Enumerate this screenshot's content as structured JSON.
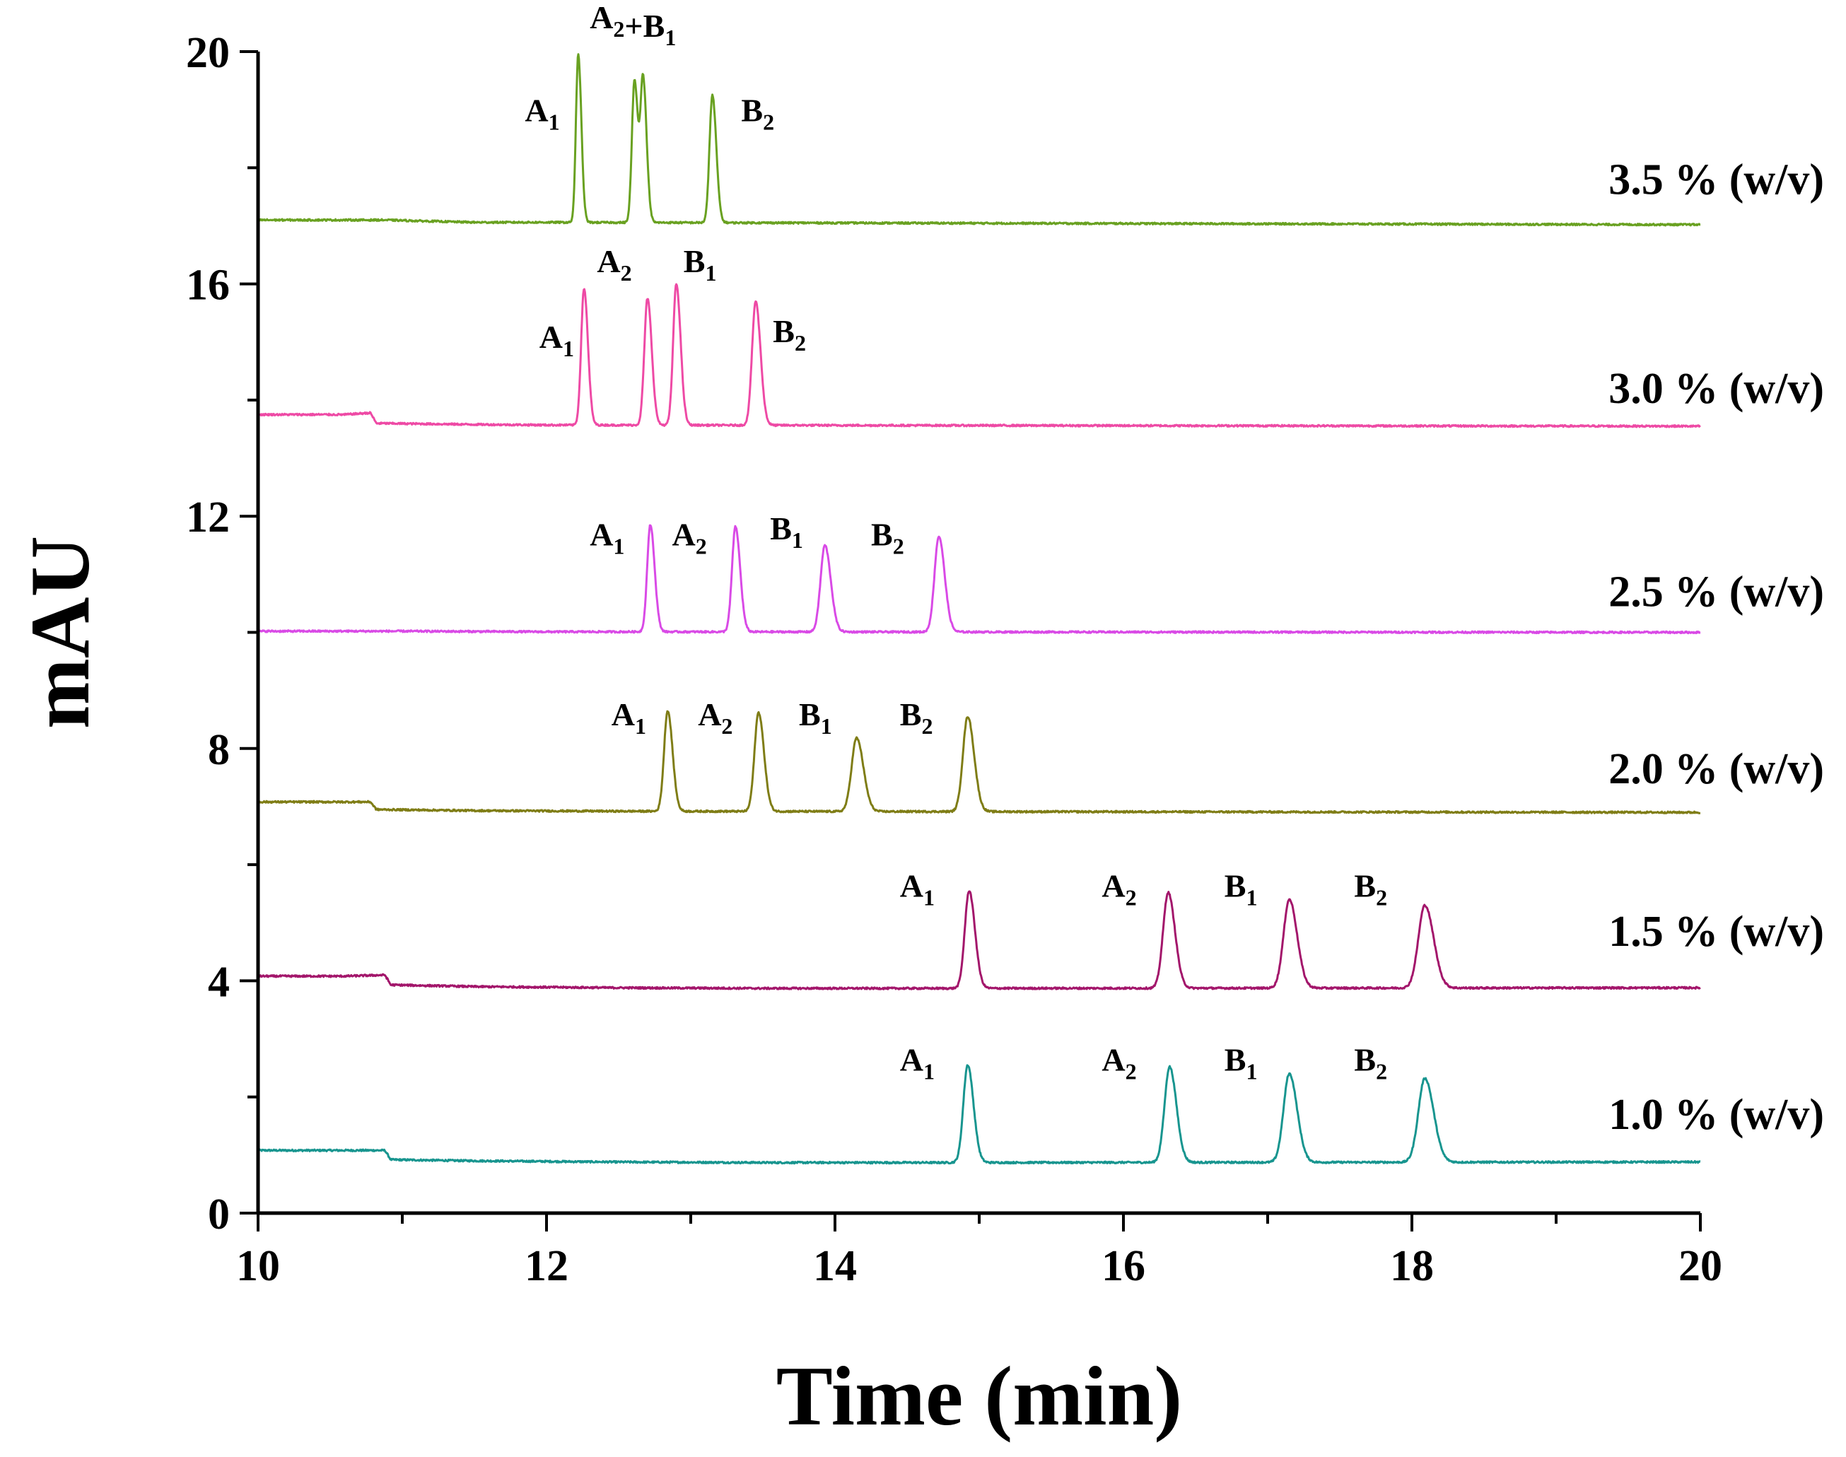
{
  "chart_data": {
    "type": "line",
    "title": "",
    "xlabel": "Time (min)",
    "ylabel": "mAU",
    "xlim": [
      10,
      20
    ],
    "ylim": [
      0,
      20
    ],
    "xticks": [
      10,
      12,
      14,
      16,
      18,
      20
    ],
    "yticks": [
      0,
      4,
      8,
      12,
      16,
      20
    ],
    "x_minor_step": 1,
    "y_minor_step": 2,
    "grid": false,
    "series": [
      {
        "name": "1.0 % (w/v)",
        "color": "#18958f",
        "points": [
          [
            10,
            1.08
          ],
          [
            10.3,
            1.08
          ],
          [
            10.6,
            1.08
          ],
          [
            10.88,
            1.08
          ],
          [
            10.92,
            0.92
          ],
          [
            11.5,
            0.9
          ],
          [
            12.5,
            0.88
          ],
          [
            13.5,
            0.87
          ],
          [
            14.5,
            0.87
          ],
          [
            14.8,
            0.87
          ]
        ],
        "baseline_end": 0.88,
        "peaks": [
          {
            "t": 14.92,
            "height": 2.55,
            "width": 0.03,
            "label": "A",
            "sub": "1"
          },
          {
            "t": 16.32,
            "height": 2.52,
            "width": 0.035,
            "label": "A",
            "sub": "2"
          },
          {
            "t": 17.15,
            "height": 2.4,
            "width": 0.04,
            "label": "B",
            "sub": "1"
          },
          {
            "t": 18.09,
            "height": 2.32,
            "width": 0.045,
            "label": "B",
            "sub": "2"
          }
        ]
      },
      {
        "name": "1.5 % (w/v)",
        "color": "#a3166b",
        "points": [
          [
            10,
            4.08
          ],
          [
            10.3,
            4.08
          ],
          [
            10.6,
            4.08
          ],
          [
            10.88,
            4.1
          ],
          [
            10.92,
            3.93
          ],
          [
            11.5,
            3.9
          ],
          [
            12.5,
            3.88
          ],
          [
            13.5,
            3.87
          ],
          [
            14.5,
            3.87
          ],
          [
            14.8,
            3.87
          ]
        ],
        "baseline_end": 3.88,
        "peaks": [
          {
            "t": 14.93,
            "height": 5.55,
            "width": 0.03,
            "label": "A",
            "sub": "1"
          },
          {
            "t": 16.31,
            "height": 5.52,
            "width": 0.035,
            "label": "A",
            "sub": "2"
          },
          {
            "t": 17.15,
            "height": 5.4,
            "width": 0.04,
            "label": "B",
            "sub": "1"
          },
          {
            "t": 18.09,
            "height": 5.3,
            "width": 0.045,
            "label": "B",
            "sub": "2"
          }
        ]
      },
      {
        "name": "2.0 % (w/v)",
        "color": "#7f7d16",
        "points": [
          [
            10,
            7.08
          ],
          [
            10.3,
            7.08
          ],
          [
            10.6,
            7.08
          ],
          [
            10.78,
            7.08
          ],
          [
            10.82,
            6.95
          ],
          [
            11.5,
            6.93
          ],
          [
            12.5,
            6.92
          ]
        ],
        "baseline_end": 6.9,
        "peaks": [
          {
            "t": 12.84,
            "height": 8.65,
            "width": 0.025,
            "label": "A",
            "sub": "1"
          },
          {
            "t": 13.47,
            "height": 8.62,
            "width": 0.028,
            "label": "A",
            "sub": "2"
          },
          {
            "t": 14.15,
            "height": 8.18,
            "width": 0.035,
            "label": "B",
            "sub": "1"
          },
          {
            "t": 14.92,
            "height": 8.55,
            "width": 0.033,
            "label": "B",
            "sub": "2"
          }
        ]
      },
      {
        "name": "2.5 % (w/v)",
        "color": "#d94ae6",
        "points": [
          [
            10,
            10.02
          ],
          [
            11,
            10.02
          ],
          [
            12,
            10.01
          ],
          [
            12.5,
            10.01
          ]
        ],
        "baseline_end": 10.0,
        "peaks": [
          {
            "t": 12.72,
            "height": 11.85,
            "width": 0.022,
            "label": "A",
            "sub": "1"
          },
          {
            "t": 13.31,
            "height": 11.82,
            "width": 0.024,
            "label": "A",
            "sub": "2"
          },
          {
            "t": 13.93,
            "height": 11.5,
            "width": 0.03,
            "label": "B",
            "sub": "1"
          },
          {
            "t": 14.72,
            "height": 11.65,
            "width": 0.03,
            "label": "B",
            "sub": "2"
          }
        ]
      },
      {
        "name": "3.0 % (w/v)",
        "color": "#ee4aa5",
        "points": [
          [
            10,
            13.75
          ],
          [
            10.3,
            13.75
          ],
          [
            10.6,
            13.75
          ],
          [
            10.78,
            13.78
          ],
          [
            10.82,
            13.6
          ],
          [
            11.5,
            13.58
          ],
          [
            12.0,
            13.57
          ]
        ],
        "baseline_end": 13.55,
        "peaks": [
          {
            "t": 12.26,
            "height": 15.92,
            "width": 0.02,
            "label": "A",
            "sub": "1"
          },
          {
            "t": 12.7,
            "height": 15.75,
            "width": 0.022,
            "label": "A",
            "sub": "2"
          },
          {
            "t": 12.9,
            "height": 16.0,
            "width": 0.022,
            "label": "B",
            "sub": "1"
          },
          {
            "t": 13.45,
            "height": 15.7,
            "width": 0.025,
            "label": "B",
            "sub": "2"
          }
        ]
      },
      {
        "name": "3.5 % (w/v)",
        "color": "#69a121",
        "points": [
          [
            10,
            17.1
          ],
          [
            10.5,
            17.1
          ],
          [
            10.88,
            17.1
          ],
          [
            11.5,
            17.06
          ],
          [
            12.0,
            17.06
          ]
        ],
        "baseline_end": 17.02,
        "peaks": [
          {
            "t": 12.22,
            "height": 19.95,
            "width": 0.016,
            "label": "A",
            "sub": "1"
          },
          {
            "t": 12.61,
            "height": 19.5,
            "width": 0.018,
            "label": "A",
            "sub": "2",
            "combined": true
          },
          {
            "t": 12.67,
            "height": 19.5,
            "width": 0.018,
            "label": "B",
            "sub": "1",
            "combined": true
          },
          {
            "t": 13.15,
            "height": 19.25,
            "width": 0.02,
            "label": "B",
            "sub": "2"
          }
        ]
      }
    ],
    "peak_annotations": [
      {
        "series": "3.5 % (w/v)",
        "parts": [
          [
            "A",
            "1"
          ]
        ],
        "x": 11.85,
        "y": 18.8
      },
      {
        "series": "3.5 % (w/v)",
        "parts": [
          [
            "A",
            "2"
          ],
          [
            "+B",
            "1"
          ]
        ],
        "x": 12.3,
        "y": 20.4
      },
      {
        "series": "3.5 % (w/v)",
        "parts": [
          [
            "B",
            "2"
          ]
        ],
        "x": 13.35,
        "y": 18.8
      },
      {
        "series": "3.0 % (w/v)",
        "parts": [
          [
            "A",
            "1"
          ]
        ],
        "x": 11.95,
        "y": 14.9
      },
      {
        "series": "3.0 % (w/v)",
        "parts": [
          [
            "A",
            "2"
          ]
        ],
        "x": 12.35,
        "y": 16.2
      },
      {
        "series": "3.0 % (w/v)",
        "parts": [
          [
            "B",
            "1"
          ]
        ],
        "x": 12.95,
        "y": 16.2
      },
      {
        "series": "3.0 % (w/v)",
        "parts": [
          [
            "B",
            "2"
          ]
        ],
        "x": 13.57,
        "y": 15.0
      },
      {
        "series": "2.5 % (w/v)",
        "parts": [
          [
            "A",
            "1"
          ]
        ],
        "x": 12.3,
        "y": 11.5
      },
      {
        "series": "2.5 % (w/v)",
        "parts": [
          [
            "A",
            "2"
          ]
        ],
        "x": 12.87,
        "y": 11.5
      },
      {
        "series": "2.5 % (w/v)",
        "parts": [
          [
            "B",
            "1"
          ]
        ],
        "x": 13.55,
        "y": 11.6
      },
      {
        "series": "2.5 % (w/v)",
        "parts": [
          [
            "B",
            "2"
          ]
        ],
        "x": 14.25,
        "y": 11.5
      },
      {
        "series": "2.0 % (w/v)",
        "parts": [
          [
            "A",
            "1"
          ]
        ],
        "x": 12.45,
        "y": 8.4
      },
      {
        "series": "2.0 % (w/v)",
        "parts": [
          [
            "A",
            "2"
          ]
        ],
        "x": 13.05,
        "y": 8.4
      },
      {
        "series": "2.0 % (w/v)",
        "parts": [
          [
            "B",
            "1"
          ]
        ],
        "x": 13.75,
        "y": 8.4
      },
      {
        "series": "2.0 % (w/v)",
        "parts": [
          [
            "B",
            "2"
          ]
        ],
        "x": 14.45,
        "y": 8.4
      },
      {
        "series": "1.5 % (w/v)",
        "parts": [
          [
            "A",
            "1"
          ]
        ],
        "x": 14.45,
        "y": 5.45
      },
      {
        "series": "1.5 % (w/v)",
        "parts": [
          [
            "A",
            "2"
          ]
        ],
        "x": 15.85,
        "y": 5.45
      },
      {
        "series": "1.5 % (w/v)",
        "parts": [
          [
            "B",
            "1"
          ]
        ],
        "x": 16.7,
        "y": 5.45
      },
      {
        "series": "1.5 % (w/v)",
        "parts": [
          [
            "B",
            "2"
          ]
        ],
        "x": 17.6,
        "y": 5.45
      },
      {
        "series": "1.0 % (w/v)",
        "parts": [
          [
            "A",
            "1"
          ]
        ],
        "x": 14.45,
        "y": 2.45
      },
      {
        "series": "1.0 % (w/v)",
        "parts": [
          [
            "A",
            "2"
          ]
        ],
        "x": 15.85,
        "y": 2.45
      },
      {
        "series": "1.0 % (w/v)",
        "parts": [
          [
            "B",
            "1"
          ]
        ],
        "x": 16.7,
        "y": 2.45
      },
      {
        "series": "1.0 % (w/v)",
        "parts": [
          [
            "B",
            "2"
          ]
        ],
        "x": 17.6,
        "y": 2.45
      }
    ],
    "series_label_positions": [
      {
        "series": "3.5 % (w/v)",
        "y": 17.55
      },
      {
        "series": "3.0 % (w/v)",
        "y": 13.95
      },
      {
        "series": "2.5 % (w/v)",
        "y": 10.45
      },
      {
        "series": "2.0 % (w/v)",
        "y": 7.4
      },
      {
        "series": "1.5 % (w/v)",
        "y": 4.6
      },
      {
        "series": "1.0 % (w/v)",
        "y": 1.45
      }
    ]
  }
}
